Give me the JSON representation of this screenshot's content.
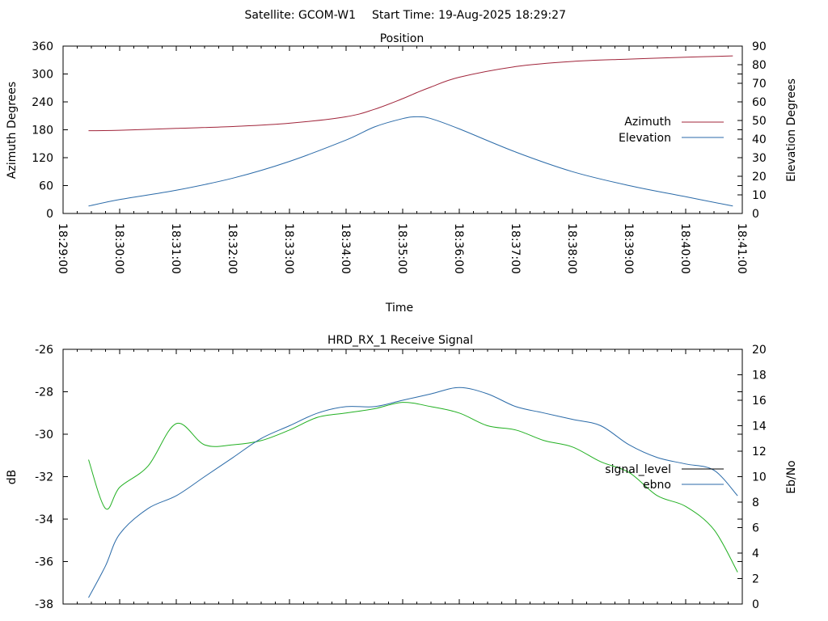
{
  "header": {
    "satellite_label": "Satellite: GCOM-W1",
    "start_time_label": "Start Time: 19-Aug-2025 18:29:27"
  },
  "chart_data": [
    {
      "type": "line",
      "title": "Position",
      "xlabel": "Time",
      "ylabel": "Azimuth Degrees",
      "y2label": "Elevation Degrees",
      "x_ticks": [
        "18:29:00",
        "18:30:00",
        "18:31:00",
        "18:32:00",
        "18:33:00",
        "18:34:00",
        "18:35:00",
        "18:36:00",
        "18:37:00",
        "18:38:00",
        "18:39:00",
        "18:40:00",
        "18:41:00"
      ],
      "xlim": [
        "18:29:00",
        "18:41:00"
      ],
      "ylim": [
        0,
        360
      ],
      "y_ticks": [
        0,
        60,
        120,
        180,
        240,
        300,
        360
      ],
      "y2lim": [
        0,
        90
      ],
      "y2_ticks": [
        0,
        10,
        20,
        30,
        40,
        50,
        60,
        70,
        80,
        90
      ],
      "legend_position": "right",
      "grid": false,
      "x": [
        "18:29:27",
        "18:30:00",
        "18:31:00",
        "18:32:00",
        "18:33:00",
        "18:34:00",
        "18:34:30",
        "18:35:00",
        "18:35:15",
        "18:35:30",
        "18:36:00",
        "18:37:00",
        "18:38:00",
        "18:39:00",
        "18:40:00",
        "18:40:50"
      ],
      "series": [
        {
          "name": "Azimuth",
          "axis": "left",
          "color": "#a0243a",
          "values": [
            178,
            179,
            183,
            187,
            194,
            208,
            224,
            247,
            260,
            272,
            293,
            316,
            327,
            332,
            336,
            339
          ]
        },
        {
          "name": "Elevation",
          "axis": "right",
          "color": "#2a6aa8",
          "values": [
            4,
            7.5,
            12.5,
            19,
            28,
            39.5,
            46.5,
            51,
            52,
            51,
            45.5,
            33,
            22.5,
            15,
            9,
            4
          ]
        }
      ]
    },
    {
      "type": "line",
      "title": "HRD_RX_1 Receive Signal",
      "xlabel": "",
      "ylabel": "dB",
      "y2label": "Eb/No",
      "xlim": [
        "18:29:00",
        "18:41:00"
      ],
      "ylim": [
        -38,
        -26
      ],
      "y_ticks": [
        -38,
        -36,
        -34,
        -32,
        -30,
        -28,
        -26
      ],
      "y2lim": [
        0,
        20
      ],
      "y2_ticks": [
        0,
        2,
        4,
        6,
        8,
        10,
        12,
        14,
        16,
        18,
        20
      ],
      "legend_position": "right",
      "grid": false,
      "x": [
        "18:29:27",
        "18:29:45",
        "18:30:00",
        "18:30:30",
        "18:31:00",
        "18:31:30",
        "18:32:00",
        "18:32:30",
        "18:33:00",
        "18:33:30",
        "18:34:00",
        "18:34:30",
        "18:35:00",
        "18:35:30",
        "18:36:00",
        "18:36:30",
        "18:37:00",
        "18:37:30",
        "18:38:00",
        "18:38:30",
        "18:39:00",
        "18:39:30",
        "18:40:00",
        "18:40:30",
        "18:40:55"
      ],
      "series": [
        {
          "name": "signal_level",
          "axis": "left",
          "color": "#22b022",
          "values": [
            -31.2,
            -33.5,
            -32.5,
            -31.5,
            -29.5,
            -30.5,
            -30.5,
            -30.3,
            -29.8,
            -29.2,
            -29.0,
            -28.8,
            -28.5,
            -28.7,
            -29.0,
            -29.6,
            -29.8,
            -30.3,
            -30.6,
            -31.3,
            -31.8,
            -32.9,
            -33.4,
            -34.5,
            -36.5
          ]
        },
        {
          "name": "ebno",
          "axis": "right",
          "color": "#2a6aa8",
          "values": [
            0.5,
            3.0,
            5.5,
            7.5,
            8.5,
            10.0,
            11.5,
            13.0,
            14.0,
            15.0,
            15.5,
            15.5,
            16.0,
            16.5,
            17.0,
            16.5,
            15.5,
            15.0,
            14.5,
            14.0,
            12.5,
            11.5,
            11.0,
            10.5,
            8.5
          ]
        }
      ]
    }
  ]
}
